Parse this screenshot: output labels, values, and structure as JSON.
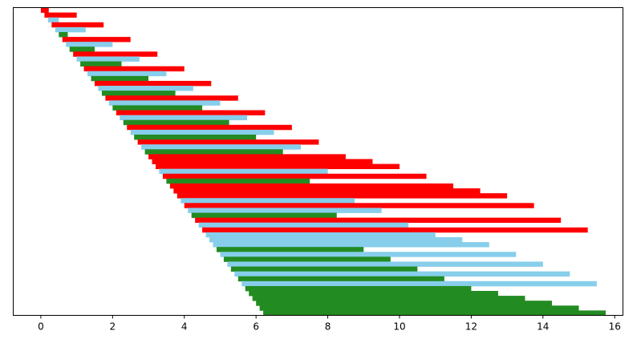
{
  "chart_data": {
    "type": "bar",
    "orientation": "horizontal",
    "title": "",
    "xlabel": "",
    "ylabel": "",
    "xlim": [
      -0.77,
      16.23
    ],
    "xticks": [
      {
        "value": 0,
        "label": "0"
      },
      {
        "value": 2,
        "label": "2"
      },
      {
        "value": 4,
        "label": "4"
      },
      {
        "value": 6,
        "label": "6"
      },
      {
        "value": 8,
        "label": "8"
      },
      {
        "value": 10,
        "label": "10"
      },
      {
        "value": 12,
        "label": "12"
      },
      {
        "value": 14,
        "label": "14"
      },
      {
        "value": 16,
        "label": "16"
      }
    ],
    "yticks": [],
    "grid": false,
    "legend": "none",
    "colors": {
      "red": "#ff0000",
      "blue": "#87ceeb",
      "green": "#228b22"
    },
    "bars": [
      {
        "start": 0.0,
        "end": 0.22,
        "color": "red"
      },
      {
        "start": 0.1,
        "end": 1.0,
        "color": "red"
      },
      {
        "start": 0.2,
        "end": 0.5,
        "color": "blue"
      },
      {
        "start": 0.3,
        "end": 1.75,
        "color": "red"
      },
      {
        "start": 0.4,
        "end": 1.25,
        "color": "blue"
      },
      {
        "start": 0.5,
        "end": 0.75,
        "color": "green"
      },
      {
        "start": 0.6,
        "end": 2.5,
        "color": "red"
      },
      {
        "start": 0.7,
        "end": 2.0,
        "color": "blue"
      },
      {
        "start": 0.8,
        "end": 1.5,
        "color": "green"
      },
      {
        "start": 0.9,
        "end": 3.25,
        "color": "red"
      },
      {
        "start": 1.0,
        "end": 2.75,
        "color": "blue"
      },
      {
        "start": 1.1,
        "end": 2.25,
        "color": "green"
      },
      {
        "start": 1.2,
        "end": 4.0,
        "color": "red"
      },
      {
        "start": 1.3,
        "end": 3.5,
        "color": "blue"
      },
      {
        "start": 1.4,
        "end": 3.0,
        "color": "green"
      },
      {
        "start": 1.5,
        "end": 4.75,
        "color": "red"
      },
      {
        "start": 1.6,
        "end": 4.25,
        "color": "blue"
      },
      {
        "start": 1.7,
        "end": 3.75,
        "color": "green"
      },
      {
        "start": 1.8,
        "end": 5.5,
        "color": "red"
      },
      {
        "start": 1.9,
        "end": 5.0,
        "color": "blue"
      },
      {
        "start": 2.0,
        "end": 4.5,
        "color": "green"
      },
      {
        "start": 2.1,
        "end": 6.25,
        "color": "red"
      },
      {
        "start": 2.2,
        "end": 5.75,
        "color": "blue"
      },
      {
        "start": 2.3,
        "end": 5.25,
        "color": "green"
      },
      {
        "start": 2.4,
        "end": 7.0,
        "color": "red"
      },
      {
        "start": 2.5,
        "end": 6.5,
        "color": "blue"
      },
      {
        "start": 2.6,
        "end": 6.0,
        "color": "green"
      },
      {
        "start": 2.7,
        "end": 7.75,
        "color": "red"
      },
      {
        "start": 2.8,
        "end": 7.25,
        "color": "blue"
      },
      {
        "start": 2.9,
        "end": 6.75,
        "color": "green"
      },
      {
        "start": 3.0,
        "end": 8.5,
        "color": "red"
      },
      {
        "start": 3.1,
        "end": 9.25,
        "color": "red"
      },
      {
        "start": 3.2,
        "end": 10.0,
        "color": "red"
      },
      {
        "start": 3.3,
        "end": 8.0,
        "color": "blue"
      },
      {
        "start": 3.4,
        "end": 10.75,
        "color": "red"
      },
      {
        "start": 3.5,
        "end": 7.5,
        "color": "green"
      },
      {
        "start": 3.6,
        "end": 11.5,
        "color": "red"
      },
      {
        "start": 3.7,
        "end": 12.25,
        "color": "red"
      },
      {
        "start": 3.8,
        "end": 13.0,
        "color": "red"
      },
      {
        "start": 3.9,
        "end": 8.75,
        "color": "blue"
      },
      {
        "start": 4.0,
        "end": 13.75,
        "color": "red"
      },
      {
        "start": 4.1,
        "end": 9.5,
        "color": "blue"
      },
      {
        "start": 4.2,
        "end": 8.25,
        "color": "green"
      },
      {
        "start": 4.3,
        "end": 14.5,
        "color": "red"
      },
      {
        "start": 4.4,
        "end": 10.25,
        "color": "blue"
      },
      {
        "start": 4.5,
        "end": 15.25,
        "color": "red"
      },
      {
        "start": 4.6,
        "end": 11.0,
        "color": "blue"
      },
      {
        "start": 4.7,
        "end": 11.75,
        "color": "blue"
      },
      {
        "start": 4.8,
        "end": 12.5,
        "color": "blue"
      },
      {
        "start": 4.9,
        "end": 9.0,
        "color": "green"
      },
      {
        "start": 5.0,
        "end": 13.25,
        "color": "blue"
      },
      {
        "start": 5.1,
        "end": 9.75,
        "color": "green"
      },
      {
        "start": 5.2,
        "end": 14.0,
        "color": "blue"
      },
      {
        "start": 5.3,
        "end": 10.5,
        "color": "green"
      },
      {
        "start": 5.4,
        "end": 14.75,
        "color": "blue"
      },
      {
        "start": 5.5,
        "end": 11.25,
        "color": "green"
      },
      {
        "start": 5.6,
        "end": 15.5,
        "color": "blue"
      },
      {
        "start": 5.7,
        "end": 12.0,
        "color": "green"
      },
      {
        "start": 5.8,
        "end": 12.75,
        "color": "green"
      },
      {
        "start": 5.9,
        "end": 13.5,
        "color": "green"
      },
      {
        "start": 6.0,
        "end": 14.25,
        "color": "green"
      },
      {
        "start": 6.1,
        "end": 15.0,
        "color": "green"
      },
      {
        "start": 6.2,
        "end": 15.75,
        "color": "green"
      }
    ]
  }
}
